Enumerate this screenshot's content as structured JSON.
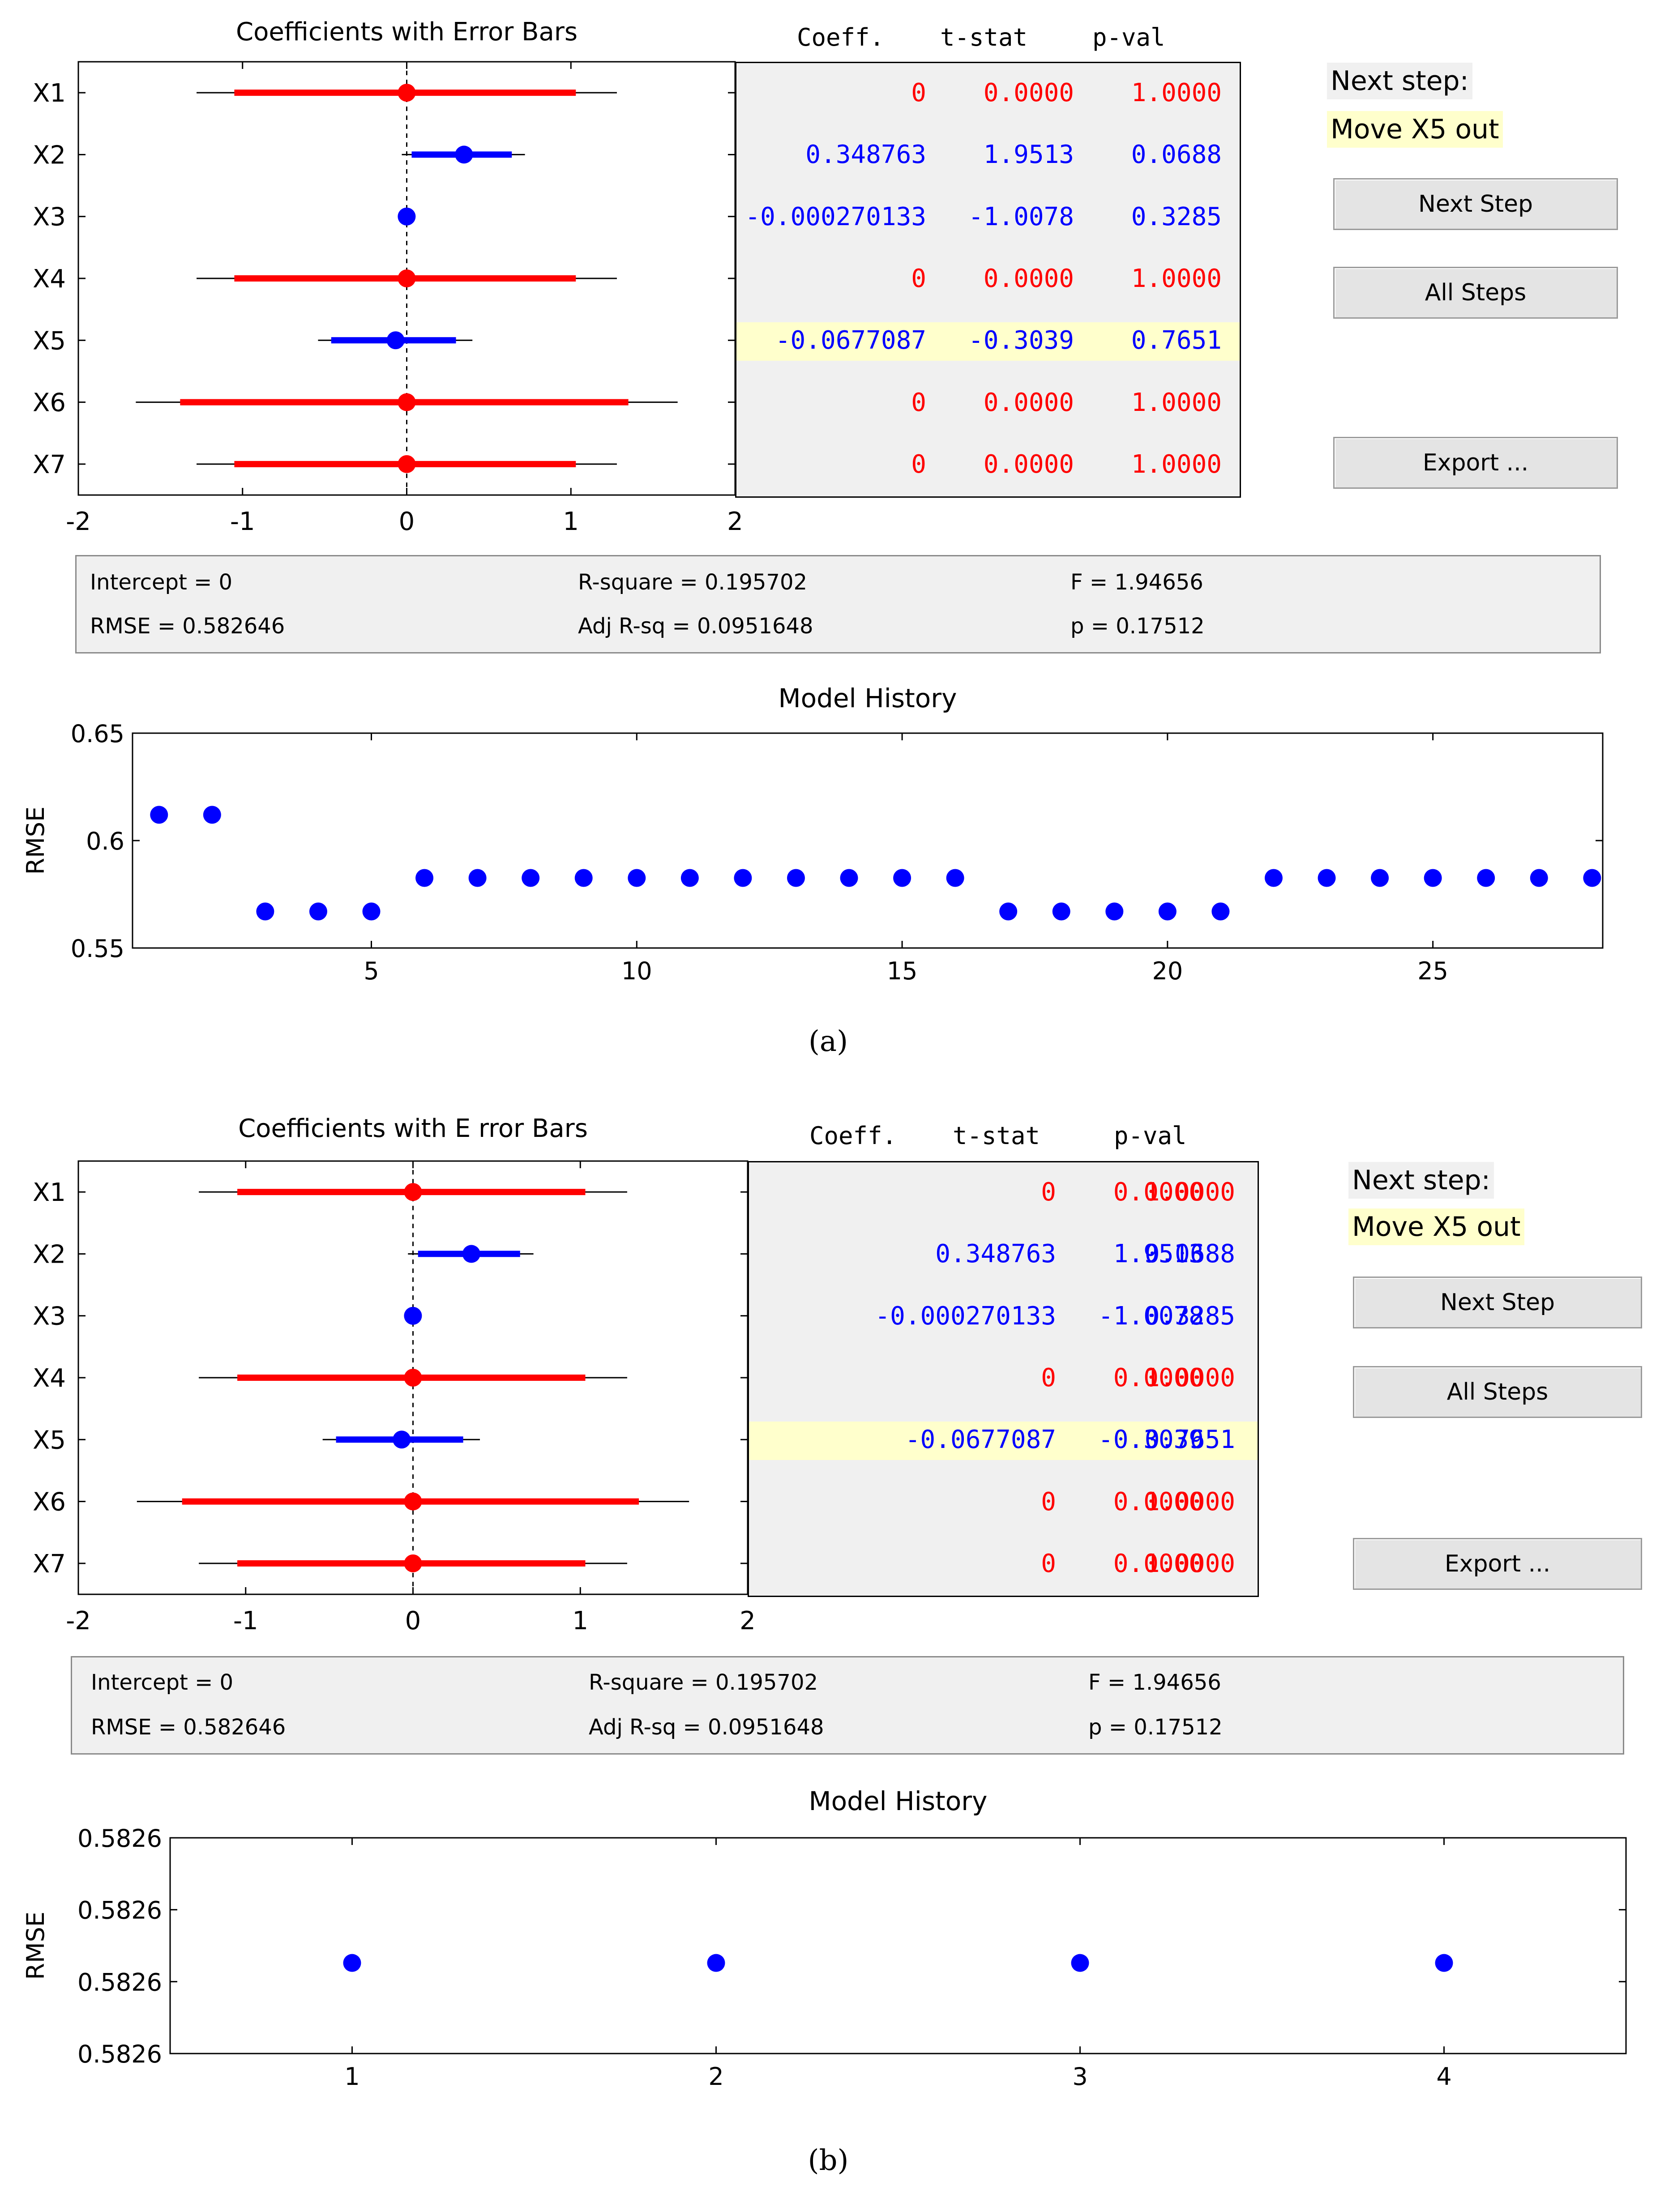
{
  "panels": [
    {
      "caption": "(a)",
      "coef_chart": {
        "title": "Coefficients with Error Bars",
        "xlim": [
          -2,
          2
        ],
        "xticks": [
          "-2",
          "-1",
          "0",
          "1",
          "2"
        ]
      },
      "table": {
        "headers": [
          "Coeff.",
          "t-stat",
          "p-val"
        ],
        "highlight_row": 4
      },
      "next_step": {
        "label": "Next step:",
        "action": "Move X5 out"
      },
      "buttons": {
        "next_step": "Next Step",
        "all_steps": "All Steps",
        "export": "Export ..."
      },
      "stats": {
        "intercept": "Intercept = 0",
        "rmse": "RMSE = 0.582646",
        "rsquare": "R-square = 0.195702",
        "adj_rsq": "Adj R-sq = 0.0951648",
        "f": "F = 1.94656",
        "p": "p = 0.17512"
      },
      "history": {
        "title": "Model History",
        "ylabel": "RMSE",
        "yticks": [
          "0.65",
          "0.6",
          "0.55"
        ],
        "xticks": [
          "5",
          "10",
          "15",
          "20",
          "25"
        ]
      }
    },
    {
      "caption": "(b)",
      "coef_chart": {
        "title": "Coefficients with E rror Bars",
        "xlim": [
          -2,
          2
        ],
        "xticks": [
          "-2",
          "-1",
          "0",
          "1",
          "2"
        ]
      },
      "table": {
        "headers": [
          "Coeff.",
          "t-stat",
          "p-val"
        ],
        "highlight_row": 4
      },
      "next_step": {
        "label": "Next step:",
        "action": "Move X5 out"
      },
      "buttons": {
        "next_step": "Next Step",
        "all_steps": "All Steps",
        "export": "Export ..."
      },
      "stats": {
        "intercept": "Intercept = 0",
        "rmse": "RMSE = 0.582646",
        "rsquare": "R-square = 0.195702",
        "adj_rsq": "Adj R-sq = 0.0951648",
        "f": "F = 1.94656",
        "p": "p = 0.17512"
      },
      "history": {
        "title": "Model History",
        "ylabel": "RMSE",
        "yticks": [
          "0.5826",
          "0.5826",
          "0.5826",
          "0.5826"
        ],
        "xticks": [
          "1",
          "2",
          "3",
          "4"
        ]
      }
    }
  ],
  "colors": {
    "in_model": "#0000ff",
    "out_model": "#ff0000",
    "highlight": "#ffffcc",
    "panel_bg": "#f0f0f0"
  },
  "chart_data": [
    {
      "type": "scatter",
      "title": "Coefficients with Error Bars",
      "categories": [
        "X1",
        "X2",
        "X3",
        "X4",
        "X5",
        "X6",
        "X7"
      ],
      "xlim": [
        -2,
        2
      ],
      "points": [
        {
          "name": "X1",
          "coef": 0,
          "ci_inner": [
            -1.05,
            1.03
          ],
          "ci_outer": [
            -1.28,
            1.28
          ],
          "in_model": false
        },
        {
          "name": "X2",
          "coef": 0.348763,
          "ci_inner": [
            0.03,
            0.64
          ],
          "ci_outer": [
            -0.03,
            0.72
          ],
          "in_model": true
        },
        {
          "name": "X3",
          "coef": -0.000270133,
          "ci_inner": [
            -0.02,
            0.02
          ],
          "ci_outer": [
            -0.03,
            0.03
          ],
          "in_model": true
        },
        {
          "name": "X4",
          "coef": 0,
          "ci_inner": [
            -1.05,
            1.03
          ],
          "ci_outer": [
            -1.28,
            1.28
          ],
          "in_model": false
        },
        {
          "name": "X5",
          "coef": -0.0677087,
          "ci_inner": [
            -0.46,
            0.3
          ],
          "ci_outer": [
            -0.54,
            0.4
          ],
          "in_model": true
        },
        {
          "name": "X6",
          "coef": 0,
          "ci_inner": [
            -1.38,
            1.35
          ],
          "ci_outer": [
            -1.65,
            1.65
          ],
          "in_model": false
        },
        {
          "name": "X7",
          "coef": 0,
          "ci_inner": [
            -1.05,
            1.03
          ],
          "ci_outer": [
            -1.28,
            1.28
          ],
          "in_model": false
        }
      ],
      "table_rows": [
        {
          "coeff": "0",
          "tstat": "0.0000",
          "pval": "1.0000",
          "in_model": false
        },
        {
          "coeff": "0.348763",
          "tstat": "1.9513",
          "pval": "0.0688",
          "in_model": true
        },
        {
          "coeff": "-0.000270133",
          "tstat": "-1.0078",
          "pval": "0.3285",
          "in_model": true
        },
        {
          "coeff": "0",
          "tstat": "0.0000",
          "pval": "1.0000",
          "in_model": false
        },
        {
          "coeff": "-0.0677087",
          "tstat": "-0.3039",
          "pval": "0.7651",
          "in_model": true
        },
        {
          "coeff": "0",
          "tstat": "0.0000",
          "pval": "1.0000",
          "in_model": false
        },
        {
          "coeff": "0",
          "tstat": "0.0000",
          "pval": "1.0000",
          "in_model": false
        }
      ]
    },
    {
      "type": "scatter",
      "title": "Model History",
      "ylabel": "RMSE",
      "xlim": [
        0.5,
        28.2
      ],
      "ylim": [
        0.55,
        0.65
      ],
      "x": [
        1,
        2,
        3,
        4,
        5,
        6,
        7,
        8,
        9,
        10,
        11,
        12,
        13,
        14,
        15,
        16,
        17,
        18,
        19,
        20,
        21,
        22,
        23,
        24,
        25,
        26,
        27,
        28
      ],
      "y": [
        0.612,
        0.612,
        0.567,
        0.567,
        0.567,
        0.5826,
        0.5826,
        0.5826,
        0.5826,
        0.5826,
        0.5826,
        0.5826,
        0.5826,
        0.5826,
        0.5826,
        0.5826,
        0.567,
        0.567,
        0.567,
        0.567,
        0.567,
        0.5826,
        0.5826,
        0.5826,
        0.5826,
        0.5826,
        0.5826,
        0.5826
      ]
    },
    {
      "type": "scatter",
      "title": "Coefficients with E rror Bars",
      "categories": [
        "X1",
        "X2",
        "X3",
        "X4",
        "X5",
        "X6",
        "X7"
      ],
      "xlim": [
        -2,
        2
      ],
      "points": [
        {
          "name": "X1",
          "coef": 0,
          "ci_inner": [
            -1.05,
            1.03
          ],
          "ci_outer": [
            -1.28,
            1.28
          ],
          "in_model": false
        },
        {
          "name": "X2",
          "coef": 0.348763,
          "ci_inner": [
            0.03,
            0.64
          ],
          "ci_outer": [
            -0.03,
            0.72
          ],
          "in_model": true
        },
        {
          "name": "X3",
          "coef": -0.000270133,
          "ci_inner": [
            -0.02,
            0.02
          ],
          "ci_outer": [
            -0.03,
            0.03
          ],
          "in_model": true
        },
        {
          "name": "X4",
          "coef": 0,
          "ci_inner": [
            -1.05,
            1.03
          ],
          "ci_outer": [
            -1.28,
            1.28
          ],
          "in_model": false
        },
        {
          "name": "X5",
          "coef": -0.0677087,
          "ci_inner": [
            -0.46,
            0.3
          ],
          "ci_outer": [
            -0.54,
            0.4
          ],
          "in_model": true
        },
        {
          "name": "X6",
          "coef": 0,
          "ci_inner": [
            -1.38,
            1.35
          ],
          "ci_outer": [
            -1.65,
            1.65
          ],
          "in_model": false
        },
        {
          "name": "X7",
          "coef": 0,
          "ci_inner": [
            -1.05,
            1.03
          ],
          "ci_outer": [
            -1.28,
            1.28
          ],
          "in_model": false
        }
      ],
      "table_rows": [
        {
          "coeff": "0",
          "tstat": "0.0000",
          "pval": "1.0000",
          "in_model": false
        },
        {
          "coeff": "0.348763",
          "tstat": "1.9513",
          "pval": "0.0688",
          "in_model": true
        },
        {
          "coeff": "-0.000270133",
          "tstat": "-1.0078",
          "pval": "0.3285",
          "in_model": true
        },
        {
          "coeff": "0",
          "tstat": "0.0000",
          "pval": "1.0000",
          "in_model": false
        },
        {
          "coeff": "-0.0677087",
          "tstat": "-0.3039",
          "pval": "0.7651",
          "in_model": true
        },
        {
          "coeff": "0",
          "tstat": "0.0000",
          "pval": "1.0000",
          "in_model": false
        },
        {
          "coeff": "0",
          "tstat": "0.0000",
          "pval": "1.0000",
          "in_model": false
        }
      ]
    },
    {
      "type": "scatter",
      "title": "Model History",
      "ylabel": "RMSE",
      "xlim": [
        0.5,
        4.5
      ],
      "x": [
        1,
        2,
        3,
        4
      ],
      "y": [
        0.582646,
        0.582646,
        0.582646,
        0.582646
      ]
    }
  ]
}
